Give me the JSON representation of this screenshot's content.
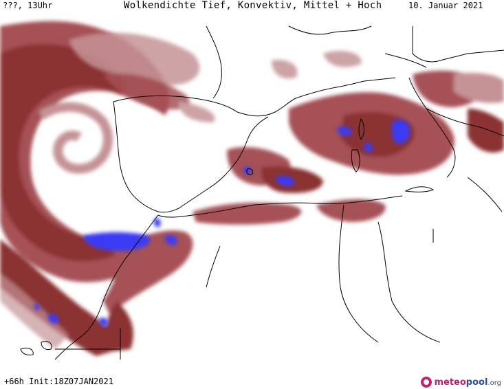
{
  "header": {
    "run_label": "???, 13Uhr",
    "title": "Wolkendichte  Tief, Konvektiv, Mittel + Hoch",
    "date": "10. Januar 2021"
  },
  "footer": {
    "init_label": "+66h Init:18Z07JAN2021",
    "logo_meteo": "meteo",
    "logo_pool": "pool",
    "logo_tld": ".org"
  },
  "colors": {
    "cloud_dark": "#8b3033",
    "cloud_mid": "#a55156",
    "cloud_light": "#c59396",
    "convective": "#3a3af5",
    "coastline": "#000000",
    "background": "#ffffff"
  },
  "icons": {
    "logo": "meteopool-logo-icon"
  }
}
